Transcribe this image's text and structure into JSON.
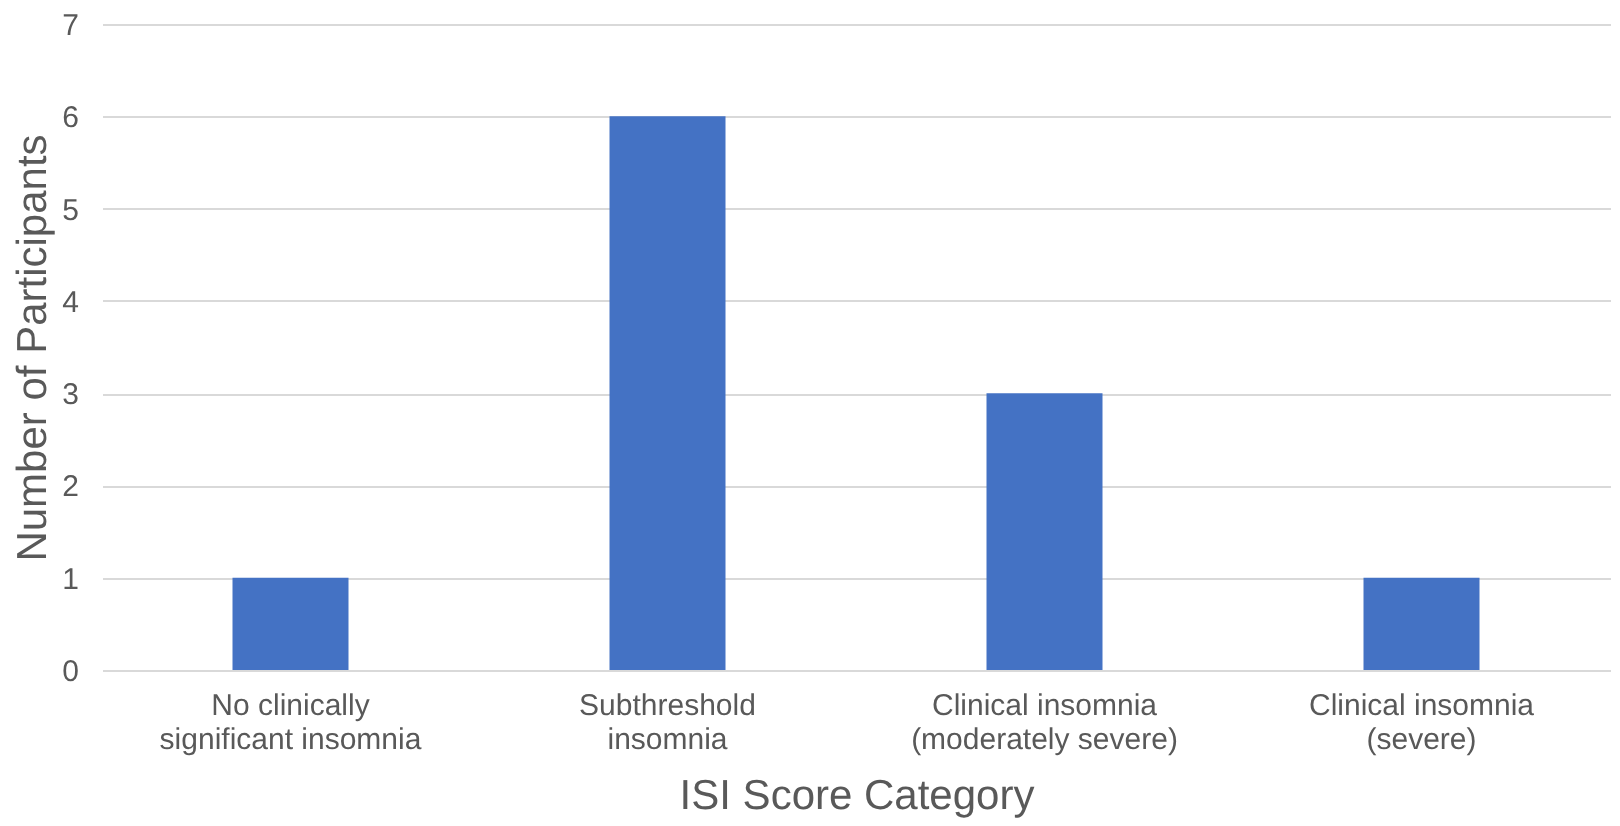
{
  "chart_data": {
    "type": "bar",
    "xlabel": "ISI Score Category",
    "ylabel": "Number of Participants",
    "categories": [
      "No clinically\nsignificant insomnia",
      "Subthreshold\ninsomnia",
      "Clinical insomnia\n(moderately severe)",
      "Clinical insomnia\n(severe)"
    ],
    "values": [
      1,
      6,
      3,
      1
    ],
    "color": "#4472c4",
    "ylim": [
      0,
      7
    ],
    "yticks": [
      0,
      1,
      2,
      3,
      4,
      5,
      6,
      7
    ],
    "grid": "y"
  }
}
